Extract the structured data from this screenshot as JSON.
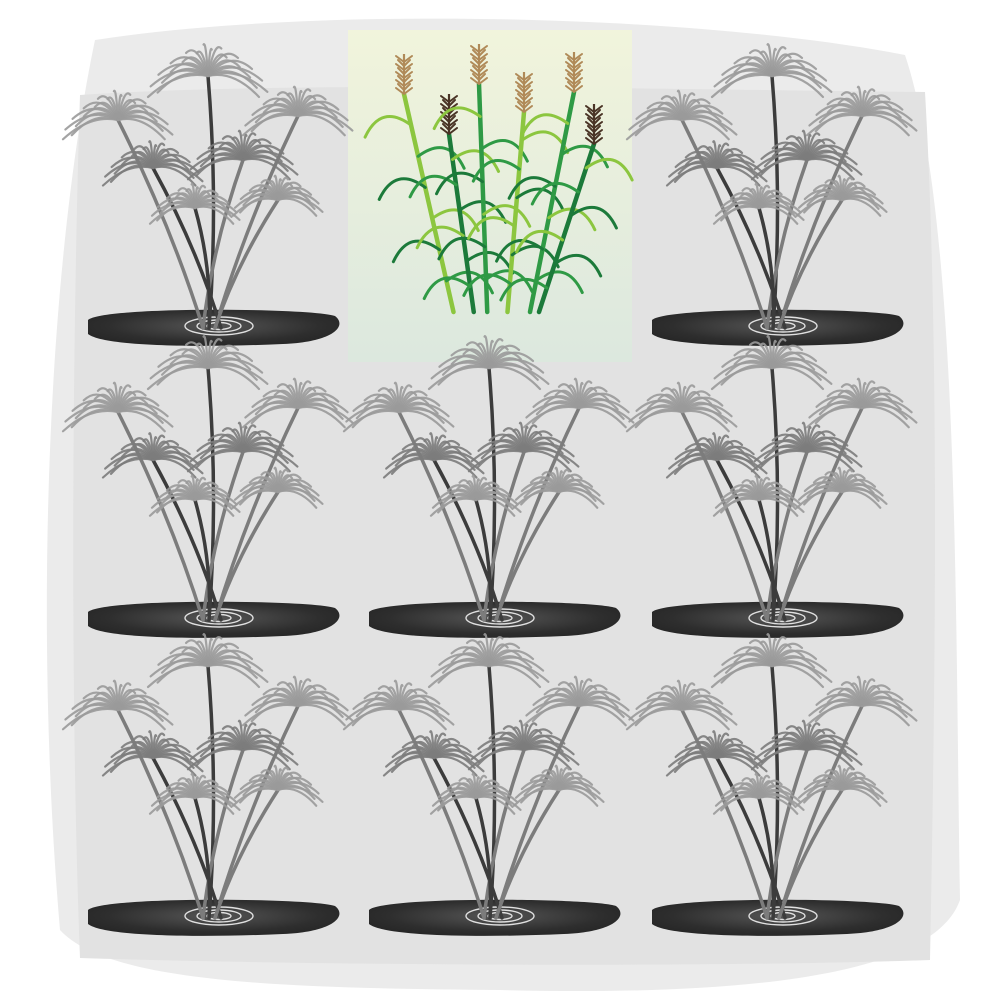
{
  "grid": {
    "rows": 3,
    "columns": 3,
    "highlighted_cell": {
      "row": 0,
      "column": 1,
      "plant": "sugarcane",
      "background": "#dce8de"
    },
    "other_cells_plant": "papyrus"
  },
  "colors": {
    "backdrop_blob": "#ebebeb",
    "grid_panel": "#e2e2e2",
    "highlight_bg": "#dce8de",
    "highlight_glow": "#f1f4dc",
    "papyrus_light": "#9a9a9a",
    "papyrus_mid": "#7c7c7c",
    "papyrus_dark": "#3c3c3c",
    "puddle": "#2e2e2e",
    "puddle_edge": "#555555",
    "ripple": "#e0e0e0",
    "cane_dark": "#1c7a3a",
    "cane_mid": "#2f9a45",
    "cane_light": "#8cc63f",
    "tassel_tan": "#b08a58",
    "tassel_dark": "#4a3426"
  }
}
